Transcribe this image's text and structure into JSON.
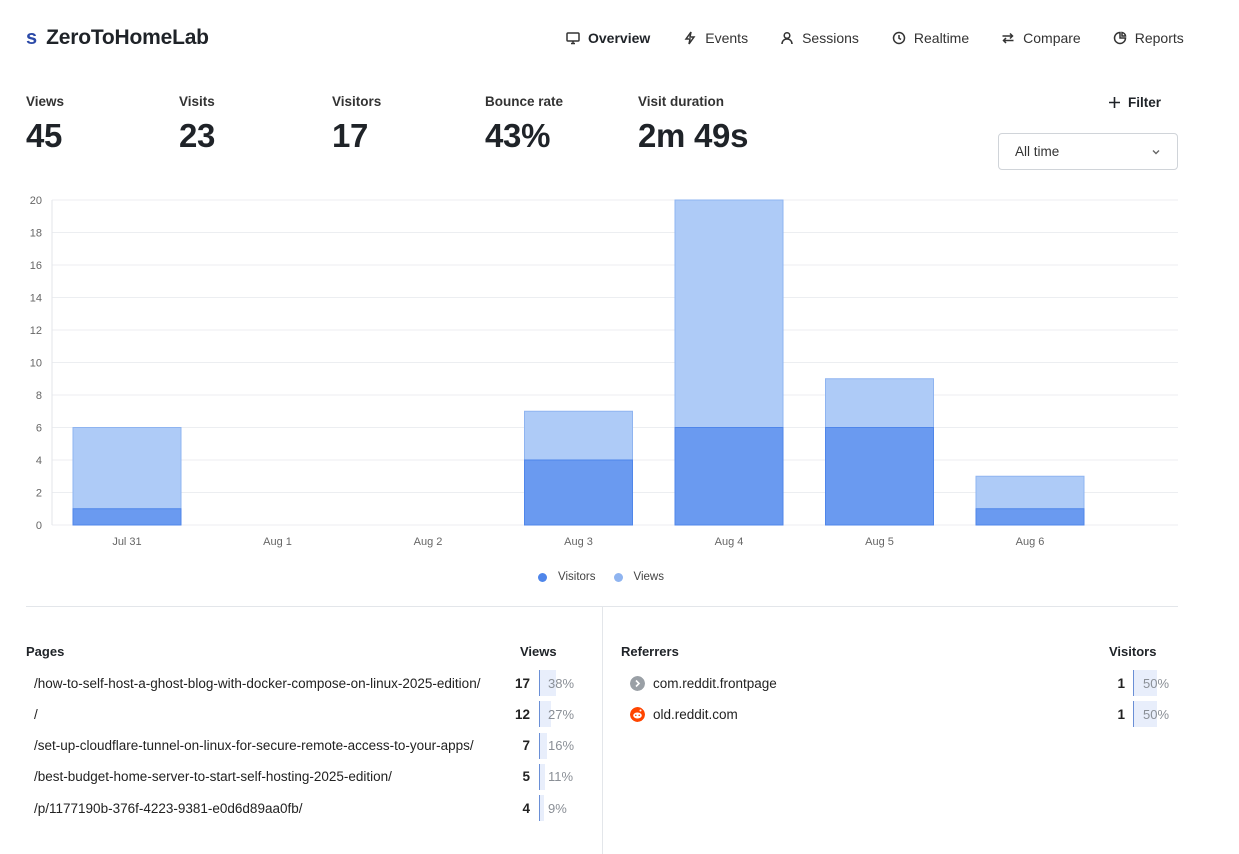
{
  "app": {
    "logo_mark": "s",
    "name": "ZeroToHomeLab"
  },
  "nav": [
    {
      "label": "Overview",
      "icon": "monitor-icon",
      "active": true
    },
    {
      "label": "Events",
      "icon": "lightning-icon"
    },
    {
      "label": "Sessions",
      "icon": "user-icon"
    },
    {
      "label": "Realtime",
      "icon": "clock-icon"
    },
    {
      "label": "Compare",
      "icon": "arrows-icon"
    },
    {
      "label": "Reports",
      "icon": "pie-icon"
    }
  ],
  "metrics": [
    {
      "label": "Views",
      "value": "45"
    },
    {
      "label": "Visits",
      "value": "23"
    },
    {
      "label": "Visitors",
      "value": "17"
    },
    {
      "label": "Bounce rate",
      "value": "43%"
    },
    {
      "label": "Visit duration",
      "value": "2m 49s"
    }
  ],
  "filter": {
    "label": "Filter"
  },
  "date_range": {
    "selected": "All time"
  },
  "chart_data": {
    "type": "bar",
    "categories": [
      "Jul 31",
      "Aug 1",
      "Aug 2",
      "Aug 3",
      "Aug 4",
      "Aug 5",
      "Aug 6"
    ],
    "series": [
      {
        "name": "Visitors",
        "values": [
          1,
          0,
          0,
          4,
          6,
          6,
          1
        ],
        "color": "#6a9af0"
      },
      {
        "name": "Views",
        "values": [
          6,
          0,
          0,
          7,
          20,
          9,
          3
        ],
        "color": "#aecbf7"
      }
    ],
    "ylim": [
      0,
      20
    ],
    "yticks": [
      0,
      2,
      4,
      6,
      8,
      10,
      12,
      14,
      16,
      18,
      20
    ],
    "grid": true,
    "legend": "bottom-center",
    "stacked_overlay": true
  },
  "pages": {
    "title": "Pages",
    "metric_label": "Views",
    "rows": [
      {
        "label": "/how-to-self-host-a-ghost-blog-with-docker-compose-on-linux-2025-edition/",
        "count": "17",
        "pct": "38%",
        "fraction": 0.38
      },
      {
        "label": "/",
        "count": "12",
        "pct": "27%",
        "fraction": 0.27
      },
      {
        "label": "/set-up-cloudflare-tunnel-on-linux-for-secure-remote-access-to-your-apps/",
        "count": "7",
        "pct": "16%",
        "fraction": 0.16
      },
      {
        "label": "/best-budget-home-server-to-start-self-hosting-2025-edition/",
        "count": "5",
        "pct": "11%",
        "fraction": 0.11
      },
      {
        "label": "/p/1177190b-376f-4223-9381-e0d6d89aa0fb/",
        "count": "4",
        "pct": "9%",
        "fraction": 0.09
      }
    ]
  },
  "referrers": {
    "title": "Referrers",
    "metric_label": "Visitors",
    "rows": [
      {
        "label": "com.reddit.frontpage",
        "count": "1",
        "pct": "50%",
        "fraction": 0.5,
        "icon": "app-arrow-icon",
        "icon_color": "#9aa0a6"
      },
      {
        "label": "old.reddit.com",
        "count": "1",
        "pct": "50%",
        "fraction": 0.5,
        "icon": "reddit-icon",
        "icon_color": "#ff4500"
      }
    ]
  }
}
